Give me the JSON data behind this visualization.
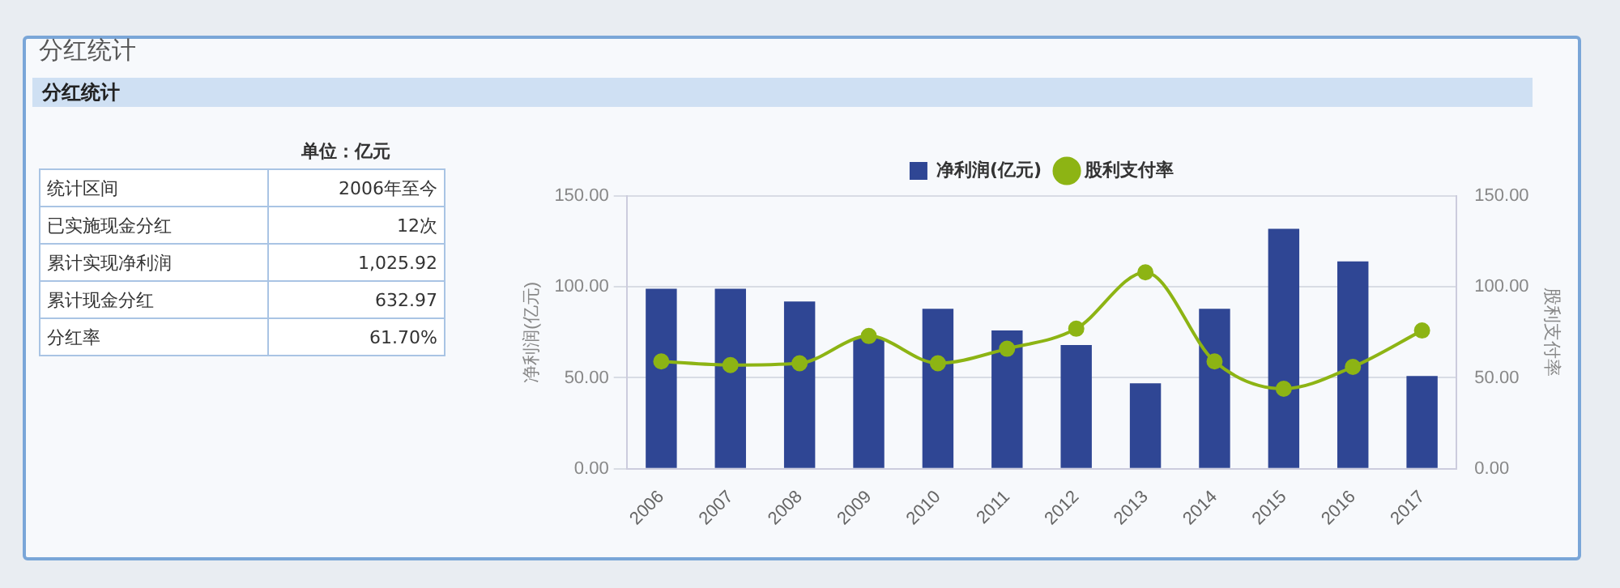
{
  "chart_data": [
    {
      "type": "other",
      "title": "分红统计",
      "subtitle": "分红统计",
      "annotations": [
        "单位：亿元",
        "统计区间",
        "2006年至今",
        "已实施现金分红",
        "12次",
        "累计实现净利润",
        "1,025.92",
        "累计现金分红",
        "632.97",
        "分红率",
        "61.70%"
      ]
    },
    {
      "type": "bar",
      "categories": [
        "2006",
        "2007",
        "2008",
        "2009",
        "2010",
        "2011",
        "2012",
        "2013",
        "2014",
        "2015",
        "2016",
        "2017"
      ],
      "series": [
        {
          "name": "净利润(亿元)",
          "color": "#2f4694",
          "values": [
            99,
            99,
            92,
            72,
            88,
            76,
            68,
            47,
            88,
            132,
            114,
            51
          ]
        },
        {
          "name": "股利支付率",
          "type": "line",
          "axis": "y2",
          "color": "#8db414",
          "values": [
            59,
            57,
            58,
            73,
            58,
            66,
            77,
            108,
            59,
            44,
            56,
            76
          ]
        }
      ],
      "ylabel": "净利润(亿元)",
      "y2label": "股利支付率",
      "ylim": [
        0,
        150
      ],
      "yticks": [
        {
          "value": 0,
          "label": "0.00"
        },
        {
          "value": 50,
          "label": "50.00"
        },
        {
          "value": 100,
          "label": "100.00"
        },
        {
          "value": 150,
          "label": "150.00"
        }
      ],
      "y2lim": [
        0,
        150
      ],
      "y2ticks": [
        {
          "value": 0,
          "label": "0.00"
        },
        {
          "value": 50,
          "label": "50.00"
        },
        {
          "value": 100,
          "label": "100.00"
        },
        {
          "value": 150,
          "label": "150.00"
        }
      ],
      "grid": "y",
      "legend": "top",
      "marker": "circle"
    }
  ]
}
